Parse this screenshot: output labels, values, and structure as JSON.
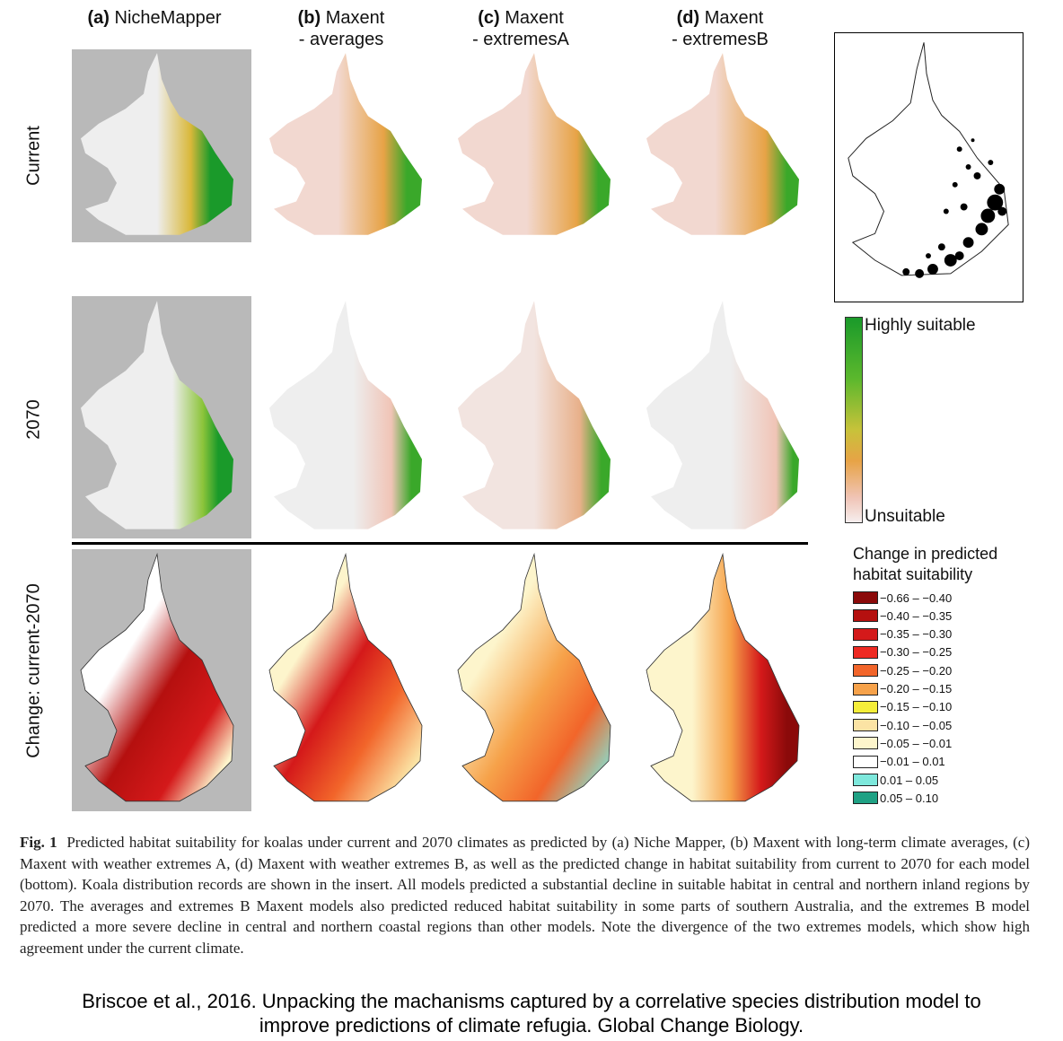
{
  "columns": [
    {
      "id": "a",
      "label": "(a)",
      "title_line1": "NicheMapper",
      "title_line2": ""
    },
    {
      "id": "b",
      "label": "(b)",
      "title_line1": "Maxent",
      "title_line2": "- averages"
    },
    {
      "id": "c",
      "label": "(c)",
      "title_line1": "Maxent",
      "title_line2": "- extremesA"
    },
    {
      "id": "d",
      "label": "(d)",
      "title_line1": "Maxent",
      "title_line2": "- extremesB"
    }
  ],
  "rows": [
    {
      "id": "current",
      "label": "Current"
    },
    {
      "id": "2070",
      "label": "2070"
    },
    {
      "id": "change",
      "label": "Change: current-2070"
    }
  ],
  "suitability_legend": {
    "top_label": "Highly suitable",
    "bottom_label": "Unsuitable"
  },
  "change_legend": {
    "title_line1": "Change in predicted",
    "title_line2": "habitat suitability",
    "items": [
      {
        "label": "−0.66 – −0.40",
        "color": "#8b0a0a"
      },
      {
        "label": "−0.40 – −0.35",
        "color": "#b5100f"
      },
      {
        "label": "−0.35 – −0.30",
        "color": "#d4191a"
      },
      {
        "label": "−0.30 – −0.25",
        "color": "#ee2a22"
      },
      {
        "label": "−0.25 – −0.20",
        "color": "#f2652a"
      },
      {
        "label": "−0.20 – −0.15",
        "color": "#f6a24a"
      },
      {
        "label": "−0.15 – −0.10",
        "color": "#f5ee3a"
      },
      {
        "label": "−0.10 – −0.05",
        "color": "#fbe3a4"
      },
      {
        "label": "−0.05 – −0.01",
        "color": "#fdf5cc"
      },
      {
        "label": "−0.01 – 0.01",
        "color": "#ffffff"
      },
      {
        "label": "0.01 –  0.05",
        "color": "#7ee8dc"
      },
      {
        "label": "0.05 –  0.10",
        "color": "#1fa184"
      }
    ]
  },
  "caption": {
    "label": "Fig. 1",
    "text": "Predicted habitat suitability for koalas under current and 2070 climates as predicted by (a) Niche Mapper, (b) Maxent with long-term climate averages, (c) Maxent with weather extremes A, (d) Maxent with weather extremes B, as well as the predicted change in habitat suitability from current to 2070 for each model (bottom). Koala distribution records are shown in the insert. All models predicted a substantial decline in suitable habitat in central and northern inland regions by 2070. The averages and extremes B Maxent models also predicted reduced habitat suitability in some parts of southern Australia, and the extremes B model predicted a more severe decline in central and northern coastal regions than other models. Note the divergence of the two extremes models, which show high agreement under the current climate."
  },
  "citation": {
    "line1": "Briscoe et al., 2016. Unpacking the machanisms captured by a correlative species distribution model to",
    "line2": "improve predictions of climate refugia. Global Change Biology."
  },
  "colors": {
    "map_grey_bg": "#b9b9b9",
    "suitable_green": "#1a9a2a",
    "mid_yellow": "#d9b83a",
    "low_pink": "#f0c4b6",
    "unsuitable": "#eeeeee"
  }
}
